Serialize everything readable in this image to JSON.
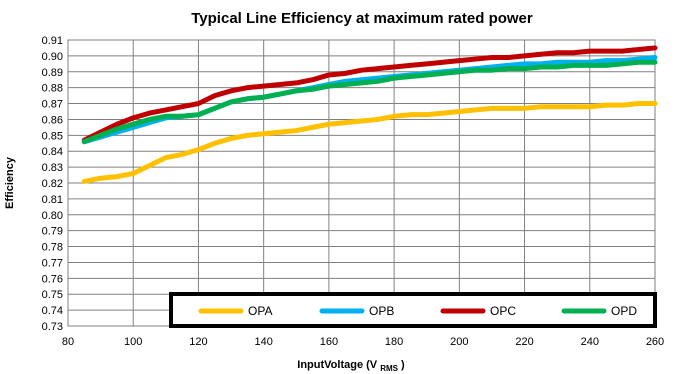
{
  "chart_data": {
    "type": "line",
    "title": "Typical Line Efficiency at maximum rated power",
    "xlabel": {
      "main": "InputVoltage (V",
      "sub": "RMS",
      "suffix": ")"
    },
    "ylabel": "Efficiency",
    "xlim": [
      80,
      260
    ],
    "ylim": [
      0.73,
      0.91
    ],
    "x_ticks": [
      "80",
      "100",
      "120",
      "140",
      "160",
      "180",
      "200",
      "220",
      "240",
      "260"
    ],
    "y_ticks": [
      "0.73",
      "0.74",
      "0.75",
      "0.76",
      "0.77",
      "0.78",
      "0.79",
      "0.80",
      "0.81",
      "0.82",
      "0.83",
      "0.84",
      "0.85",
      "0.86",
      "0.87",
      "0.88",
      "0.89",
      "0.90",
      "0.91"
    ],
    "grid": true,
    "legend_position": "bottom-right inside plot",
    "x": [
      85,
      90,
      95,
      100,
      105,
      110,
      115,
      120,
      125,
      130,
      135,
      140,
      145,
      150,
      155,
      160,
      165,
      170,
      175,
      180,
      185,
      190,
      195,
      200,
      205,
      210,
      215,
      220,
      225,
      230,
      235,
      240,
      245,
      250,
      255,
      260
    ],
    "series": [
      {
        "name": "OPA",
        "color": "#FFC000",
        "values": [
          0.821,
          0.823,
          0.824,
          0.826,
          0.831,
          0.836,
          0.838,
          0.841,
          0.845,
          0.848,
          0.85,
          0.851,
          0.852,
          0.853,
          0.855,
          0.857,
          0.858,
          0.859,
          0.86,
          0.862,
          0.863,
          0.863,
          0.864,
          0.865,
          0.866,
          0.867,
          0.867,
          0.867,
          0.868,
          0.868,
          0.868,
          0.868,
          0.869,
          0.869,
          0.87,
          0.87
        ]
      },
      {
        "name": "OPB",
        "color": "#00B0F0",
        "values": [
          0.846,
          0.849,
          0.852,
          0.855,
          0.858,
          0.861,
          0.862,
          0.863,
          0.867,
          0.871,
          0.873,
          0.874,
          0.876,
          0.878,
          0.88,
          0.882,
          0.884,
          0.885,
          0.886,
          0.887,
          0.888,
          0.889,
          0.89,
          0.891,
          0.892,
          0.893,
          0.894,
          0.895,
          0.895,
          0.896,
          0.896,
          0.896,
          0.897,
          0.897,
          0.898,
          0.899
        ]
      },
      {
        "name": "OPC",
        "color": "#C00000",
        "values": [
          0.847,
          0.852,
          0.857,
          0.861,
          0.864,
          0.866,
          0.868,
          0.87,
          0.875,
          0.878,
          0.88,
          0.881,
          0.882,
          0.883,
          0.885,
          0.888,
          0.889,
          0.891,
          0.892,
          0.893,
          0.894,
          0.895,
          0.896,
          0.897,
          0.898,
          0.899,
          0.899,
          0.9,
          0.901,
          0.902,
          0.902,
          0.903,
          0.903,
          0.903,
          0.904,
          0.905
        ]
      },
      {
        "name": "OPD",
        "color": "#00B050",
        "values": [
          0.846,
          0.85,
          0.854,
          0.857,
          0.86,
          0.862,
          0.862,
          0.863,
          0.867,
          0.871,
          0.873,
          0.874,
          0.876,
          0.878,
          0.879,
          0.881,
          0.882,
          0.883,
          0.884,
          0.886,
          0.887,
          0.888,
          0.889,
          0.89,
          0.891,
          0.891,
          0.892,
          0.892,
          0.893,
          0.893,
          0.894,
          0.894,
          0.894,
          0.895,
          0.896,
          0.896
        ]
      }
    ]
  }
}
